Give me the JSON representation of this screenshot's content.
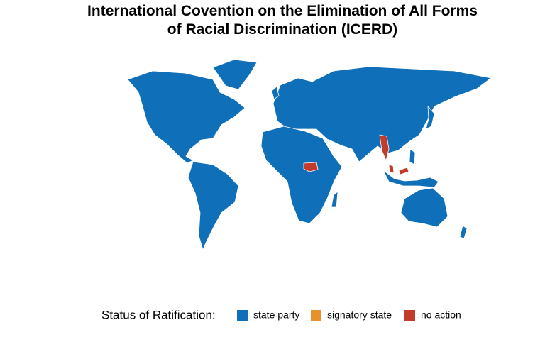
{
  "title": [
    "International Covention on the Elimination of All Forms",
    "of Racial Discrimination (ICERD)"
  ],
  "legend": {
    "title": "Status of Ratification:",
    "items": [
      {
        "label": "state party",
        "color": "#0f6fb8"
      },
      {
        "label": "signatory state",
        "color": "#e8902a"
      },
      {
        "label": "no action",
        "color": "#c23b2b"
      }
    ]
  }
}
